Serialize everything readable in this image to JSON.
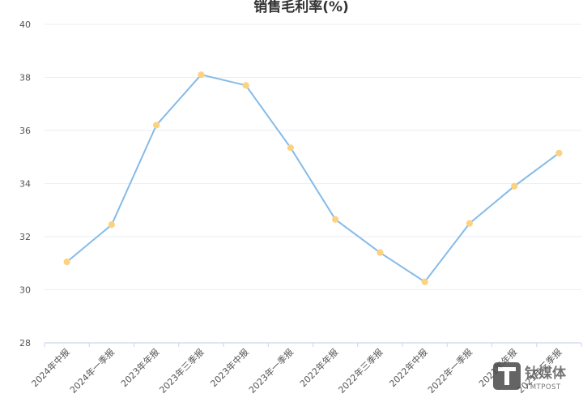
{
  "chart_data": {
    "type": "line",
    "title": "销售毛利率(%)",
    "categories": [
      "2024年中报",
      "2024年一季报",
      "2023年年报",
      "2023年三季报",
      "2023年中报",
      "2023年一季报",
      "2022年年报",
      "2022年三季报",
      "2022年中报",
      "2022年一季报",
      "2021年年报",
      "2021年三季报"
    ],
    "values": [
      31.05,
      32.45,
      36.2,
      38.1,
      37.7,
      35.35,
      32.65,
      31.4,
      30.3,
      32.5,
      33.9,
      35.15
    ],
    "ylim": [
      28,
      40
    ],
    "yticks": [
      28,
      30,
      32,
      34,
      36,
      38,
      40
    ],
    "grid": true,
    "legend": "none",
    "colors": {
      "line": "#85bbe8",
      "point": "#fcd27e"
    }
  },
  "watermark": {
    "brand_cn": "钛媒体",
    "brand_en": "TMTPOST"
  }
}
